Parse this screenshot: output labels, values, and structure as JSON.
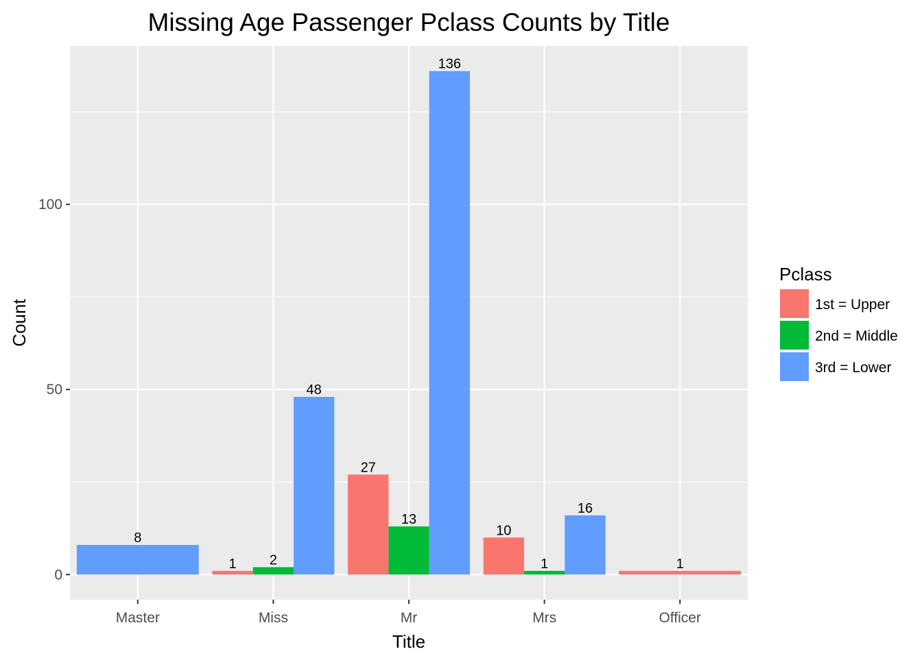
{
  "chart_data": {
    "type": "bar",
    "title": "Missing Age Passenger Pclass Counts by Title",
    "xlabel": "Title",
    "ylabel": "Count",
    "categories": [
      "Master",
      "Miss",
      "Mr",
      "Mrs",
      "Officer"
    ],
    "yticks": [
      0,
      50,
      100
    ],
    "ylim": [
      -6.8,
      142.8
    ],
    "grid": true,
    "legend": {
      "title": "Pclass",
      "position": "right"
    },
    "series": [
      {
        "name": "1st = Upper",
        "color": "#F8766D"
      },
      {
        "name": "2nd = Middle",
        "color": "#00BA38"
      },
      {
        "name": "3rd = Lower",
        "color": "#619CFF"
      }
    ],
    "bars": [
      {
        "category": "Master",
        "series": "3rd = Lower",
        "value": 8,
        "label": "8"
      },
      {
        "category": "Miss",
        "series": "1st = Upper",
        "value": 1,
        "label": "1"
      },
      {
        "category": "Miss",
        "series": "2nd = Middle",
        "value": 2,
        "label": "2"
      },
      {
        "category": "Miss",
        "series": "3rd = Lower",
        "value": 48,
        "label": "48"
      },
      {
        "category": "Mr",
        "series": "1st = Upper",
        "value": 27,
        "label": "27"
      },
      {
        "category": "Mr",
        "series": "2nd = Middle",
        "value": 13,
        "label": "13"
      },
      {
        "category": "Mr",
        "series": "3rd = Lower",
        "value": 136,
        "label": "136"
      },
      {
        "category": "Mrs",
        "series": "1st = Upper",
        "value": 10,
        "label": "10"
      },
      {
        "category": "Mrs",
        "series": "2nd = Middle",
        "value": 1,
        "label": "1"
      },
      {
        "category": "Mrs",
        "series": "3rd = Lower",
        "value": 16,
        "label": "16"
      },
      {
        "category": "Officer",
        "series": "1st = Upper",
        "value": 1,
        "label": "1"
      }
    ]
  }
}
